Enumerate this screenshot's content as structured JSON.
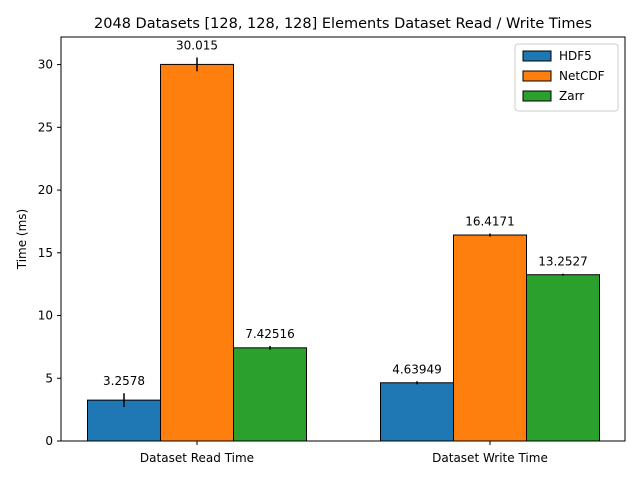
{
  "chart_data": {
    "type": "bar",
    "title": "2048 Datasets [128, 128, 128] Elements Dataset Read / Write Times",
    "xlabel": "",
    "ylabel": "Time (ms)",
    "ylim": [
      0,
      32.2
    ],
    "yticks": [
      0,
      5,
      10,
      15,
      20,
      25,
      30
    ],
    "grid": false,
    "legend_position": "top-right",
    "categories": [
      "Dataset Read Time",
      "Dataset Write Time"
    ],
    "series": [
      {
        "name": "HDF5",
        "color": "#1f77b4",
        "values": [
          3.2578,
          4.63949
        ],
        "labels": [
          "3.2578",
          "4.63949"
        ],
        "errors": [
          0.55,
          0.12
        ]
      },
      {
        "name": "NetCDF",
        "color": "#ff7f0e",
        "values": [
          30.015,
          16.4171
        ],
        "labels": [
          "30.015",
          "16.4171"
        ],
        "errors": [
          0.55,
          0.12
        ]
      },
      {
        "name": "Zarr",
        "color": "#2ca02c",
        "values": [
          7.42516,
          13.2527
        ],
        "labels": [
          "7.42516",
          "13.2527"
        ],
        "errors": [
          0.15,
          0.08
        ]
      }
    ]
  }
}
